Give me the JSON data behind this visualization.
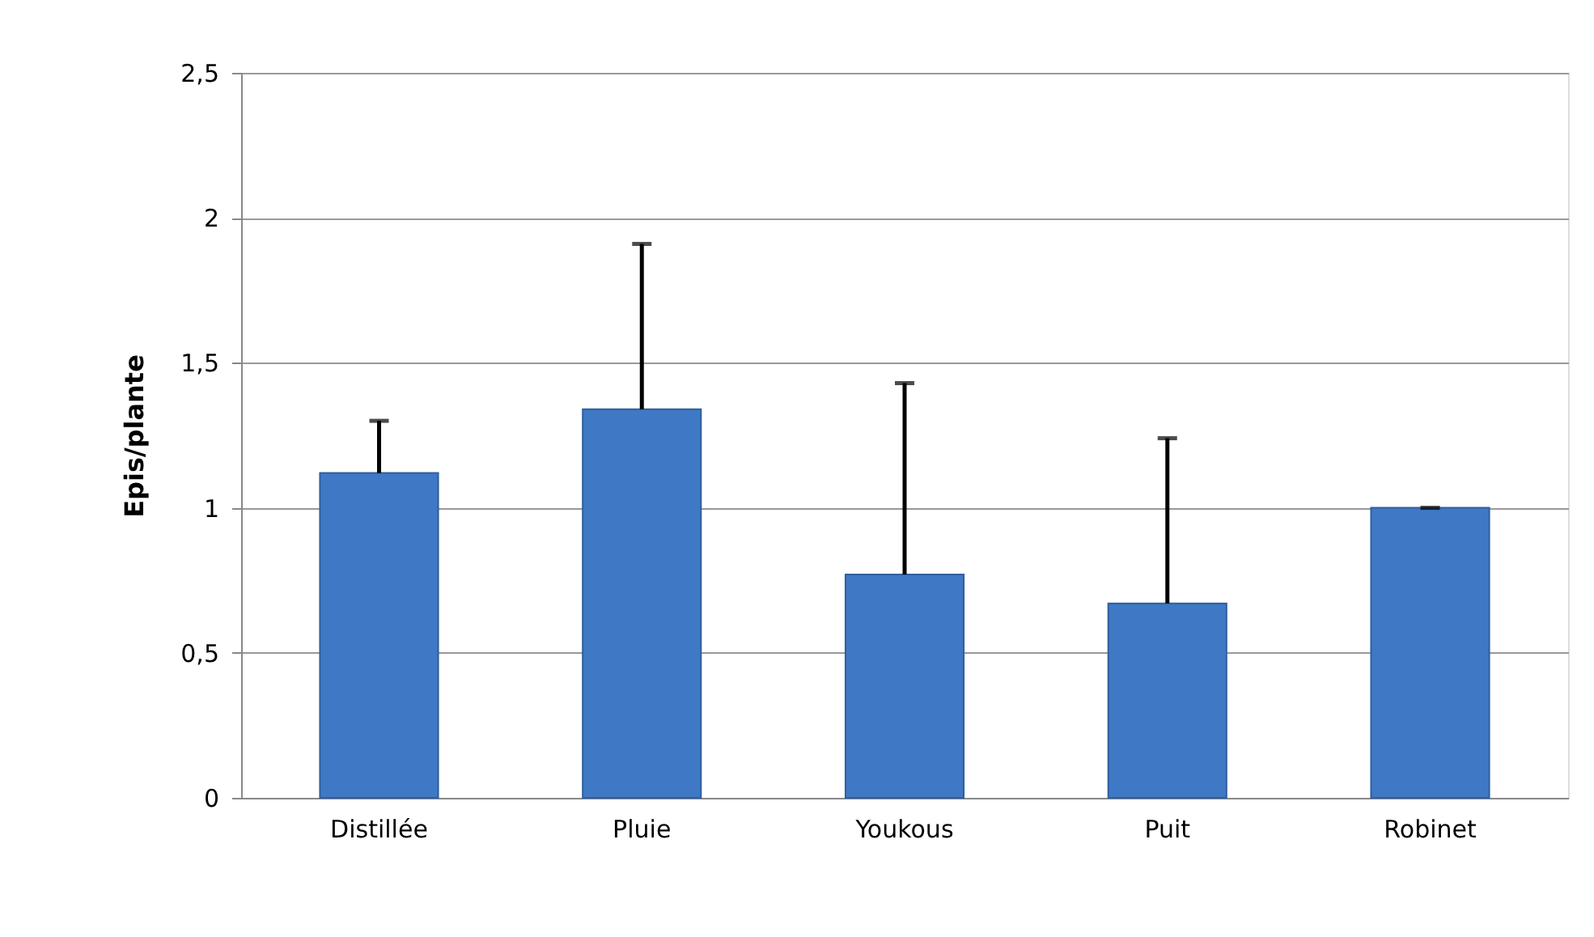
{
  "chart_data": {
    "type": "bar",
    "ylabel": "Epis/plante",
    "categories": [
      "Distillée",
      "Pluie",
      "Youkous",
      "Puit",
      "Robinet"
    ],
    "values": [
      1.12,
      1.34,
      0.77,
      0.67,
      1.0
    ],
    "errors": [
      [
        1.12,
        1.3
      ],
      [
        1.34,
        1.91
      ],
      [
        0.77,
        1.43
      ],
      [
        0.67,
        1.24
      ],
      [
        1.0,
        1.0
      ]
    ],
    "color": "#3f78c4",
    "ylim": [
      0,
      2.5
    ],
    "yticks": [
      {
        "value": 0,
        "label": "0"
      },
      {
        "value": 0.5,
        "label": "0,5"
      },
      {
        "value": 1,
        "label": "1"
      },
      {
        "value": 1.5,
        "label": "1,5"
      },
      {
        "value": 2,
        "label": "2"
      },
      {
        "value": 2.5,
        "label": "2,5"
      }
    ],
    "grid": "y"
  }
}
